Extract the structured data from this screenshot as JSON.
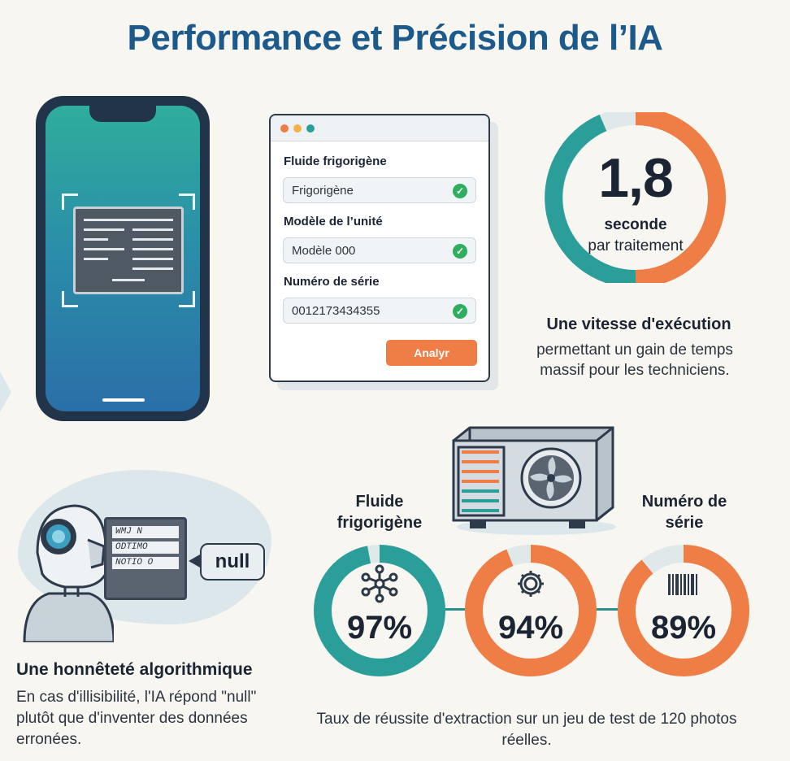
{
  "title": "Performance et Précision de l’IA",
  "form": {
    "fields": [
      {
        "label": "Fluide frigorigène",
        "value": "Frigorigène"
      },
      {
        "label": "Modèle de l’unité",
        "value": "Modèle 000"
      },
      {
        "label": "Numéro de série",
        "value": "0012173434355"
      }
    ],
    "button": "Analyr"
  },
  "speed": {
    "value": "1,8",
    "unit": "seconde",
    "sub": "par traitement",
    "headline": "Une vitesse d'exécution",
    "description": "permettant un gain de temps massif pour les techniciens."
  },
  "honesty": {
    "doc_lines": [
      "WMJ N",
      "ODTIMO",
      "NOTIO O"
    ],
    "bubble": "null",
    "headline": "Une honnêteté algorithmique",
    "description": "En cas d'illisibilité, l'IA répond \"null\" plutôt que d'inventer des données erronées."
  },
  "accuracy": {
    "labels": {
      "refrigerant": "Fluide frigorigène",
      "serial": "Numéro de série"
    },
    "rings": [
      {
        "value": "97%",
        "fraction": 0.97,
        "color": "#2b9e99",
        "icon": "molecule-icon"
      },
      {
        "value": "94%",
        "fraction": 0.94,
        "color": "#ef7d46",
        "icon": "gear-icon"
      },
      {
        "value": "89%",
        "fraction": 0.89,
        "color": "#ef7d46",
        "icon": "barcode-icon"
      }
    ],
    "caption": "Taux de réussite d'extraction sur un jeu de test de 120 photos réelles."
  },
  "colors": {
    "brand_blue": "#1d5a8c",
    "teal": "#2b9e99",
    "orange": "#ef7d46",
    "success_green": "#2fae5f"
  }
}
